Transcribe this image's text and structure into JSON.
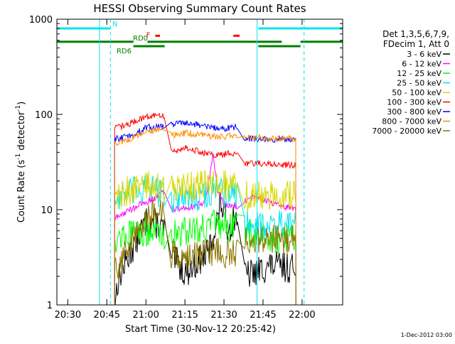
{
  "chart_data": {
    "type": "line",
    "title": "HESSI Observing Summary Count Rates",
    "xlabel": "Start Time (30-Nov-12 20:25:42)",
    "ylabel": "Count Rate (s",
    "ylabel_sup1": "-1",
    "ylabel_mid": " detector",
    "ylabel_sup2": "-1",
    "ylabel_end": ")",
    "yscale": "log",
    "ylim": [
      1,
      1000
    ],
    "xlim_minutes": [
      20.43,
      22.26
    ],
    "x_ticks": [
      {
        "label": "20:30",
        "t": 20.5
      },
      {
        "label": "20:45",
        "t": 20.75
      },
      {
        "label": "21:00",
        "t": 21.0
      },
      {
        "label": "21:15",
        "t": 21.25
      },
      {
        "label": "21:30",
        "t": 21.5
      },
      {
        "label": "21:45",
        "t": 21.75
      },
      {
        "label": "22:00",
        "t": 22.0
      }
    ],
    "y_ticks": [
      {
        "label": "1",
        "v": 1
      },
      {
        "label": "10",
        "v": 10
      },
      {
        "label": "100",
        "v": 100
      },
      {
        "label": "1000",
        "v": 1000
      }
    ],
    "legend_header": [
      "Det 1,3,5,6,7,9,",
      "FDecim 1, Att 0"
    ],
    "legend_position": "right",
    "footer_date": "1-Dec-2012 03:00",
    "vlines": [
      {
        "t": 20.703,
        "color": "#00e5ee",
        "style": "solid"
      },
      {
        "t": 20.773,
        "color": "#00e5ee",
        "style": "dashed"
      },
      {
        "t": 21.712,
        "color": "#00e5ee",
        "style": "solid"
      },
      {
        "t": 22.013,
        "color": "#00e5ee",
        "style": "dashed"
      }
    ],
    "flags": [
      {
        "label": "N",
        "color": "#00e5ee",
        "value": 800,
        "spans": [
          [
            20.43,
            20.77
          ],
          [
            21.72,
            22.26
          ]
        ]
      },
      {
        "label": "F",
        "color": "#ff0000",
        "value": 670,
        "spans": [
          [
            21.06,
            21.09
          ],
          [
            21.56,
            21.6
          ]
        ]
      },
      {
        "label": "RD0",
        "color": "#008000",
        "value": 580,
        "spans": [
          [
            20.43,
            20.92
          ],
          [
            21.01,
            21.87
          ],
          [
            21.99,
            22.26
          ]
        ]
      },
      {
        "label": "RD6",
        "color": "#008000",
        "value": 520,
        "spans": [
          [
            20.92,
            21.12
          ],
          [
            21.72,
            21.99
          ]
        ]
      }
    ],
    "segments": [
      [
        20.8,
        21.121
      ],
      [
        21.159,
        21.589
      ],
      [
        21.629,
        21.96
      ]
    ],
    "series": [
      {
        "name": "3 - 6 keV",
        "color": "#000000",
        "seg": [
          [
            [
              20.8,
              1
            ],
            [
              20.82,
              1.8
            ],
            [
              20.86,
              2.5
            ],
            [
              20.9,
              3.5
            ],
            [
              20.93,
              4.5
            ],
            [
              20.97,
              6
            ],
            [
              21.0,
              7.5
            ],
            [
              21.04,
              7.5
            ],
            [
              21.08,
              7
            ],
            [
              21.1,
              6.5
            ],
            [
              21.121,
              6
            ]
          ],
          [
            [
              21.159,
              3
            ],
            [
              21.2,
              2.8
            ],
            [
              21.25,
              2.2
            ],
            [
              21.3,
              2.5
            ],
            [
              21.35,
              3
            ],
            [
              21.4,
              3.5
            ],
            [
              21.45,
              7
            ],
            [
              21.48,
              12
            ],
            [
              21.5,
              9
            ],
            [
              21.53,
              6
            ],
            [
              21.56,
              8
            ],
            [
              21.589,
              9
            ]
          ],
          [
            [
              21.629,
              2
            ],
            [
              21.7,
              2.2
            ],
            [
              21.8,
              2.6
            ],
            [
              21.96,
              2.4
            ]
          ]
        ]
      },
      {
        "name": "6 - 12 keV",
        "color": "#ff00ff",
        "seg": [
          [
            [
              20.8,
              8
            ],
            [
              20.85,
              9
            ],
            [
              20.9,
              10
            ],
            [
              20.95,
              11
            ],
            [
              21.0,
              12
            ],
            [
              21.05,
              13
            ],
            [
              21.08,
              14
            ],
            [
              21.1,
              16
            ],
            [
              21.121,
              14
            ]
          ],
          [
            [
              21.159,
              10
            ],
            [
              21.25,
              10.5
            ],
            [
              21.32,
              11
            ],
            [
              21.37,
              12
            ],
            [
              21.4,
              18
            ],
            [
              21.43,
              40
            ],
            [
              21.46,
              16
            ],
            [
              21.5,
              11
            ],
            [
              21.55,
              11
            ],
            [
              21.589,
              11
            ]
          ],
          [
            [
              21.629,
              12
            ],
            [
              21.7,
              14
            ],
            [
              21.8,
              12
            ],
            [
              21.96,
              10
            ]
          ]
        ]
      },
      {
        "name": "12 - 25 keV",
        "color": "#00ff00",
        "seg": [
          [
            [
              20.8,
              5
            ],
            [
              20.9,
              5.5
            ],
            [
              21.0,
              6
            ],
            [
              21.05,
              6
            ],
            [
              21.1,
              5.5
            ],
            [
              21.121,
              5.5
            ]
          ],
          [
            [
              21.159,
              5.5
            ],
            [
              21.25,
              6
            ],
            [
              21.35,
              6.5
            ],
            [
              21.43,
              7
            ],
            [
              21.5,
              6.5
            ],
            [
              21.589,
              6.5
            ]
          ],
          [
            [
              21.629,
              6
            ],
            [
              21.7,
              5.5
            ],
            [
              21.8,
              5
            ],
            [
              21.96,
              5
            ]
          ]
        ]
      },
      {
        "name": "25 - 50 keV",
        "color": "#00e5ee",
        "seg": [
          [
            [
              20.8,
              13
            ],
            [
              20.85,
              14
            ],
            [
              20.9,
              15
            ],
            [
              20.95,
              16
            ],
            [
              21.0,
              17
            ],
            [
              21.05,
              16
            ],
            [
              21.1,
              15
            ],
            [
              21.121,
              15
            ]
          ],
          [
            [
              21.159,
              13
            ],
            [
              21.25,
              13.5
            ],
            [
              21.35,
              14
            ],
            [
              21.4,
              15
            ],
            [
              21.45,
              16
            ],
            [
              21.5,
              15
            ],
            [
              21.589,
              15
            ]
          ],
          [
            [
              21.629,
              8
            ],
            [
              21.7,
              7
            ],
            [
              21.8,
              7
            ],
            [
              21.96,
              7
            ]
          ]
        ]
      },
      {
        "name": "50 - 100 keV",
        "color": "#d7d700",
        "seg": [
          [
            [
              20.8,
              14
            ],
            [
              20.85,
              15
            ],
            [
              20.9,
              16
            ],
            [
              20.95,
              17
            ],
            [
              21.0,
              18
            ],
            [
              21.05,
              17.5
            ],
            [
              21.1,
              16.5
            ],
            [
              21.121,
              16
            ]
          ],
          [
            [
              21.159,
              17
            ],
            [
              21.25,
              17.5
            ],
            [
              21.35,
              18
            ],
            [
              21.45,
              19
            ],
            [
              21.5,
              18
            ],
            [
              21.589,
              18
            ]
          ],
          [
            [
              21.629,
              14
            ],
            [
              21.7,
              14
            ],
            [
              21.8,
              14
            ],
            [
              21.96,
              14
            ]
          ]
        ]
      },
      {
        "name": "100 - 300 keV",
        "color": "#ff0000",
        "seg": [
          [
            [
              20.8,
              72
            ],
            [
              20.85,
              75
            ],
            [
              20.9,
              80
            ],
            [
              20.95,
              88
            ],
            [
              21.0,
              95
            ],
            [
              21.05,
              96
            ],
            [
              21.1,
              98
            ],
            [
              21.121,
              96
            ]
          ],
          [
            [
              21.159,
              40
            ],
            [
              21.2,
              42
            ],
            [
              21.25,
              45
            ],
            [
              21.3,
              43
            ],
            [
              21.35,
              40
            ],
            [
              21.4,
              38
            ],
            [
              21.45,
              37
            ],
            [
              21.5,
              38
            ],
            [
              21.55,
              39
            ],
            [
              21.589,
              40
            ]
          ],
          [
            [
              21.629,
              30
            ],
            [
              21.7,
              31
            ],
            [
              21.8,
              30
            ],
            [
              21.96,
              29
            ]
          ]
        ]
      },
      {
        "name": "300 - 800 keV",
        "color": "#0000ff",
        "seg": [
          [
            [
              20.8,
              55
            ],
            [
              20.85,
              57
            ],
            [
              20.9,
              60
            ],
            [
              20.95,
              65
            ],
            [
              21.0,
              72
            ],
            [
              21.05,
              74
            ],
            [
              21.1,
              75
            ],
            [
              21.121,
              74
            ]
          ],
          [
            [
              21.159,
              78
            ],
            [
              21.2,
              80
            ],
            [
              21.25,
              82
            ],
            [
              21.3,
              80
            ],
            [
              21.35,
              77
            ],
            [
              21.4,
              74
            ],
            [
              21.45,
              71
            ],
            [
              21.5,
              72
            ],
            [
              21.55,
              73
            ],
            [
              21.589,
              74
            ]
          ],
          [
            [
              21.629,
              56
            ],
            [
              21.7,
              55
            ],
            [
              21.8,
              55
            ],
            [
              21.96,
              54
            ]
          ]
        ]
      },
      {
        "name": "800 - 7000 keV",
        "color": "#ff8c00",
        "seg": [
          [
            [
              20.8,
              50
            ],
            [
              20.85,
              52
            ],
            [
              20.9,
              55
            ],
            [
              20.95,
              60
            ],
            [
              21.0,
              66
            ],
            [
              21.05,
              68
            ],
            [
              21.1,
              70
            ],
            [
              21.121,
              69
            ]
          ],
          [
            [
              21.159,
              60
            ],
            [
              21.2,
              62
            ],
            [
              21.25,
              64
            ],
            [
              21.3,
              63
            ],
            [
              21.35,
              62
            ],
            [
              21.4,
              60
            ],
            [
              21.45,
              58
            ],
            [
              21.5,
              59
            ],
            [
              21.55,
              60
            ],
            [
              21.589,
              61
            ]
          ],
          [
            [
              21.629,
              57
            ],
            [
              21.7,
              57
            ],
            [
              21.8,
              56
            ],
            [
              21.96,
              56
            ]
          ]
        ]
      },
      {
        "name": "7000 - 20000 keV",
        "color": "#8b7500",
        "seg": [
          [
            [
              20.8,
              2.5
            ],
            [
              20.85,
              3
            ],
            [
              20.9,
              4.5
            ],
            [
              20.95,
              6
            ],
            [
              21.0,
              8
            ],
            [
              21.05,
              9
            ],
            [
              21.1,
              9.5
            ],
            [
              21.121,
              9
            ]
          ],
          [
            [
              21.159,
              3.5
            ],
            [
              21.25,
              3.2
            ],
            [
              21.35,
              3.2
            ],
            [
              21.45,
              3.8
            ],
            [
              21.5,
              3.5
            ],
            [
              21.589,
              3.5
            ]
          ],
          [
            [
              21.629,
              4.5
            ],
            [
              21.7,
              5
            ],
            [
              21.8,
              5
            ],
            [
              21.96,
              5
            ]
          ]
        ]
      }
    ]
  }
}
